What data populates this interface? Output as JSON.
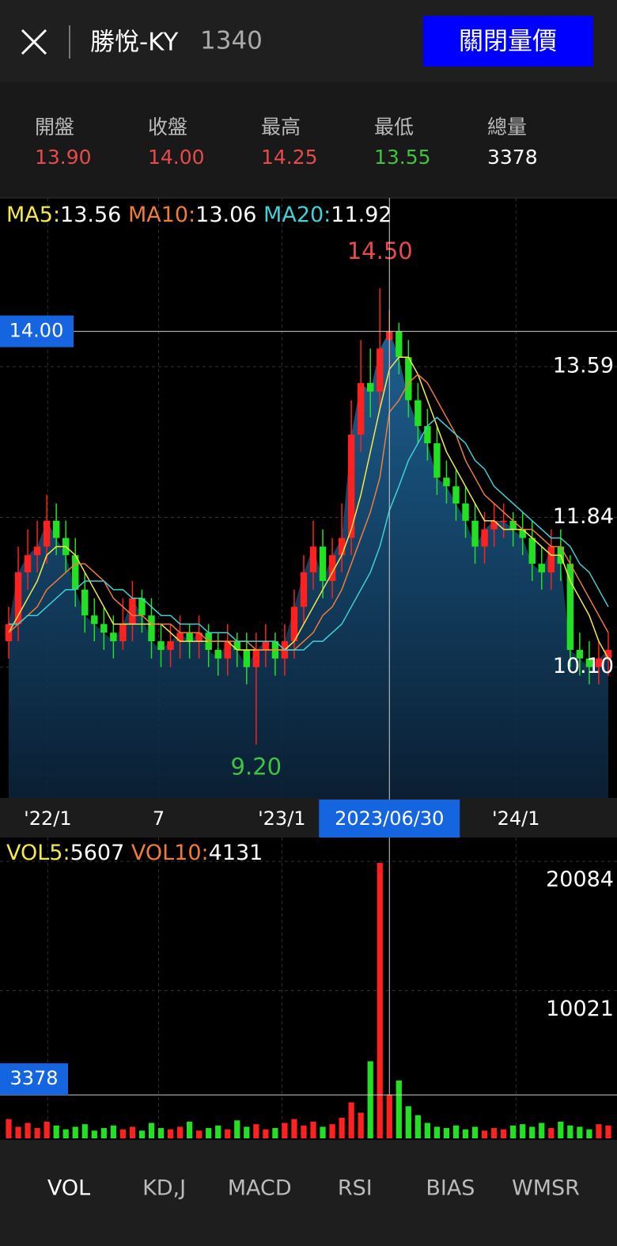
{
  "header": {
    "title": "勝悅-KY",
    "code": "1340",
    "button": "關閉量價"
  },
  "quote": [
    {
      "label": "開盤",
      "value": "13.90",
      "color": "#e84a4a"
    },
    {
      "label": "收盤",
      "value": "14.00",
      "color": "#e84a4a"
    },
    {
      "label": "最高",
      "value": "14.25",
      "color": "#e84a4a"
    },
    {
      "label": "最低",
      "value": "13.55",
      "color": "#3ec43e"
    },
    {
      "label": "總量",
      "value": "3378",
      "color": "#ffffff"
    }
  ],
  "chart_data": [
    {
      "type": "candlestick",
      "open": [
        10.4,
        10.6,
        11.2,
        11.4,
        11.5,
        11.8,
        11.6,
        11.4,
        11.0,
        10.7,
        10.6,
        10.5,
        10.4,
        10.6,
        10.9,
        10.7,
        10.4,
        10.3,
        10.4,
        10.5,
        10.4,
        10.5,
        10.3,
        10.2,
        10.4,
        10.3,
        10.1,
        10.3,
        10.4,
        10.2,
        10.4,
        10.8,
        11.2,
        11.5,
        11.1,
        11.4,
        11.6,
        12.8,
        13.4,
        13.3,
        13.9,
        14.0,
        13.7,
        13.2,
        12.9,
        12.7,
        12.3,
        12.2,
        12.0,
        11.8,
        11.5,
        11.7,
        11.8,
        11.8,
        11.7,
        11.6,
        11.3,
        11.2,
        11.5,
        11.3,
        10.3,
        10.2,
        10.1,
        10.2
      ],
      "high": [
        10.8,
        11.5,
        11.7,
        11.8,
        12.1,
        12.0,
        11.8,
        11.6,
        11.2,
        10.9,
        10.8,
        10.7,
        10.9,
        11.1,
        11.0,
        10.9,
        10.6,
        10.6,
        10.7,
        10.6,
        10.7,
        10.6,
        10.5,
        10.6,
        10.5,
        10.5,
        10.5,
        10.6,
        10.5,
        10.6,
        11.0,
        11.4,
        11.8,
        11.7,
        11.6,
        12.0,
        13.2,
        13.9,
        13.8,
        14.5,
        14.25,
        14.1,
        13.9,
        13.4,
        13.1,
        12.9,
        12.5,
        12.4,
        12.2,
        12.0,
        11.9,
        12.0,
        12.0,
        11.9,
        11.9,
        11.8,
        11.5,
        11.7,
        11.7,
        11.4,
        10.5,
        10.4,
        10.4,
        10.5
      ],
      "low": [
        10.2,
        10.4,
        11.0,
        11.2,
        11.3,
        11.4,
        11.2,
        10.8,
        10.5,
        10.4,
        10.3,
        10.2,
        10.3,
        10.4,
        10.5,
        10.2,
        10.1,
        10.1,
        10.2,
        10.2,
        10.2,
        10.1,
        10.0,
        10.0,
        10.1,
        9.9,
        9.2,
        10.1,
        10.0,
        10.0,
        10.2,
        10.6,
        11.0,
        10.9,
        10.9,
        11.2,
        11.4,
        12.6,
        13.0,
        13.1,
        13.55,
        13.5,
        13.0,
        12.7,
        12.5,
        12.1,
        12.0,
        11.8,
        11.6,
        11.3,
        11.3,
        11.5,
        11.6,
        11.5,
        11.4,
        11.1,
        11.0,
        11.0,
        11.1,
        10.1,
        10.0,
        9.9,
        9.9,
        10.0
      ],
      "close": [
        10.6,
        11.2,
        11.4,
        11.5,
        11.8,
        11.6,
        11.4,
        11.0,
        10.7,
        10.6,
        10.5,
        10.4,
        10.6,
        10.9,
        10.7,
        10.4,
        10.3,
        10.4,
        10.5,
        10.4,
        10.5,
        10.3,
        10.2,
        10.4,
        10.3,
        10.1,
        10.3,
        10.4,
        10.2,
        10.4,
        10.8,
        11.2,
        11.5,
        11.1,
        11.4,
        11.6,
        12.8,
        13.4,
        13.3,
        13.8,
        14.0,
        13.7,
        13.2,
        12.9,
        12.7,
        12.3,
        12.2,
        12.0,
        11.8,
        11.5,
        11.7,
        11.8,
        11.8,
        11.7,
        11.6,
        11.3,
        11.2,
        11.5,
        11.3,
        10.3,
        10.2,
        10.1,
        10.2,
        10.3
      ],
      "ylim": [
        8.58,
        15.55
      ],
      "yticks": [
        13.59,
        11.84,
        {
          "value": 10.1,
          "label": "10.10"
        }
      ],
      "xticks": [
        {
          "value": 4.1,
          "label": "'22/1"
        },
        {
          "value": 15.75,
          "label": "7"
        },
        {
          "value": 28.7,
          "label": "'23/1"
        },
        {
          "value": 53.3,
          "label": "'24/1"
        }
      ],
      "grid": true,
      "up_color": "#ff2020",
      "down_color": "#22e022",
      "area_color": "#1f6aa0",
      "annotations": {
        "high": "14.50",
        "low": "9.20",
        "high_color": "#e84a4a",
        "low_color": "#3ec43e"
      },
      "crosshair": {
        "index": 40,
        "date": "2023/06/30",
        "price": {
          "value": 14,
          "label": "14.00"
        }
      },
      "indicators": [
        {
          "name": "MA5:",
          "value": 13.56,
          "color": "#f5e94a",
          "values": [
            10.5,
            10.7,
            10.9,
            11.1,
            11.4,
            11.5,
            11.5,
            11.4,
            11.2,
            11.0,
            10.8,
            10.6,
            10.6,
            10.6,
            10.6,
            10.6,
            10.6,
            10.5,
            10.4,
            10.4,
            10.4,
            10.4,
            10.4,
            10.4,
            10.3,
            10.3,
            10.3,
            10.3,
            10.3,
            10.3,
            10.4,
            10.6,
            10.8,
            11.0,
            11.2,
            11.4,
            11.7,
            12.1,
            12.6,
            13.1,
            13.56,
            13.7,
            13.7,
            13.5,
            13.2,
            12.9,
            12.6,
            12.4,
            12.2,
            12.0,
            11.8,
            11.8,
            11.7,
            11.7,
            11.7,
            11.6,
            11.5,
            11.4,
            11.4,
            11.1,
            10.9,
            10.7,
            10.4,
            10.2
          ]
        },
        {
          "name": "MA10:",
          "value": 13.06,
          "color": "#f07c3a",
          "values": [
            10.5,
            10.6,
            10.7,
            10.8,
            11.0,
            11.1,
            11.2,
            11.3,
            11.3,
            11.2,
            11.1,
            10.9,
            10.8,
            10.7,
            10.7,
            10.6,
            10.6,
            10.6,
            10.5,
            10.5,
            10.5,
            10.4,
            10.4,
            10.4,
            10.4,
            10.4,
            10.3,
            10.3,
            10.3,
            10.3,
            10.3,
            10.4,
            10.5,
            10.7,
            10.8,
            11.0,
            11.3,
            11.6,
            11.9,
            12.3,
            13.06,
            13.2,
            13.4,
            13.5,
            13.4,
            13.2,
            13.0,
            12.8,
            12.5,
            12.3,
            12.1,
            12.0,
            11.9,
            11.8,
            11.7,
            11.7,
            11.6,
            11.5,
            11.5,
            11.3,
            11.1,
            10.9,
            10.7,
            10.5
          ]
        },
        {
          "name": "MA20:",
          "value": 11.92,
          "color": "#3fd0d8",
          "values": [
            10.6,
            10.6,
            10.7,
            10.7,
            10.8,
            10.9,
            11.0,
            11.0,
            11.1,
            11.1,
            11.1,
            11.0,
            11.0,
            10.9,
            10.9,
            10.8,
            10.7,
            10.7,
            10.6,
            10.6,
            10.6,
            10.5,
            10.5,
            10.5,
            10.4,
            10.4,
            10.4,
            10.4,
            10.4,
            10.3,
            10.3,
            10.3,
            10.4,
            10.4,
            10.5,
            10.6,
            10.8,
            11.0,
            11.2,
            11.5,
            11.92,
            12.2,
            12.5,
            12.7,
            12.9,
            13.0,
            12.9,
            12.8,
            12.7,
            12.5,
            12.4,
            12.2,
            12.1,
            12.0,
            11.9,
            11.8,
            11.7,
            11.6,
            11.6,
            11.5,
            11.3,
            11.2,
            11.0,
            10.8
          ]
        }
      ]
    },
    {
      "type": "bar",
      "values": [
        1500,
        900,
        1200,
        800,
        1300,
        1000,
        700,
        900,
        1100,
        600,
        800,
        1000,
        700,
        900,
        600,
        1200,
        800,
        700,
        900,
        1300,
        600,
        800,
        1000,
        700,
        1400,
        900,
        1100,
        700,
        800,
        1200,
        1500,
        1000,
        1300,
        900,
        1100,
        1600,
        2800,
        2000,
        6000,
        21440,
        3378,
        4500,
        2500,
        1800,
        1200,
        900,
        800,
        1000,
        700,
        900,
        600,
        800,
        700,
        1000,
        1100,
        900,
        1200,
        800,
        1300,
        1000,
        900,
        700,
        1100,
        1000
      ],
      "ylim": [
        0,
        22800
      ],
      "yticks": [
        20084,
        10021
      ],
      "grid": true,
      "indicators": [
        {
          "name": "VOL5:",
          "value": 5607,
          "color": "#f5e94a"
        },
        {
          "name": "VOL10:",
          "value": 4131,
          "color": "#f07c3a"
        }
      ]
    }
  ],
  "tabs": [
    "VOL",
    "KD,J",
    "MACD",
    "RSI",
    "BIAS",
    "WMSR"
  ]
}
